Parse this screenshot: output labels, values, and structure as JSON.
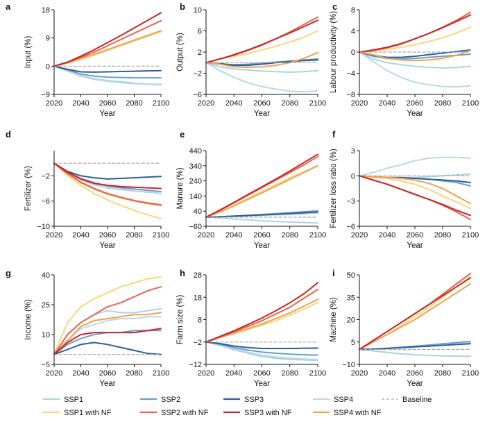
{
  "years": [
    2020,
    2030,
    2040,
    2050,
    2060,
    2070,
    2080,
    2090,
    2100
  ],
  "series": [
    {
      "key": "ssp1",
      "label": "SSP1",
      "color": "#a9d4e2",
      "dash": false
    },
    {
      "key": "ssp1nf",
      "label": "SSP1 with NF",
      "color": "#f6d77e",
      "dash": false
    },
    {
      "key": "ssp2",
      "label": "SSP2",
      "color": "#6b9ec7",
      "dash": false
    },
    {
      "key": "ssp2nf",
      "label": "SSP2 with NF",
      "color": "#e7634a",
      "dash": false
    },
    {
      "key": "ssp3",
      "label": "SSP3",
      "color": "#2f5d98",
      "dash": false
    },
    {
      "key": "ssp3nf",
      "label": "SSP3 with NF",
      "color": "#c92526",
      "dash": false
    },
    {
      "key": "ssp4",
      "label": "SSP4",
      "color": "#b8d8e8",
      "dash": false
    },
    {
      "key": "ssp4nf",
      "label": "SSP4 with NF",
      "color": "#f0a24e",
      "dash": false
    },
    {
      "key": "baseline",
      "label": "Baseline",
      "color": "#a6a6a6",
      "dash": true
    }
  ],
  "chart_data": [
    {
      "panel": "a",
      "type": "line",
      "ylabel": "Input (%)",
      "xlabel": "Year",
      "ylim": [
        -9,
        18
      ],
      "yticks": [
        -9,
        0,
        9,
        18
      ],
      "xticks": [
        2020,
        2040,
        2060,
        2080,
        2100
      ],
      "lines": {
        "ssp1": [
          0,
          -1.5,
          -3,
          -4,
          -4.6,
          -5,
          -5.4,
          -5.7,
          -5.8
        ],
        "ssp1nf": [
          0,
          1,
          2.2,
          3.5,
          5,
          6.5,
          8,
          9.5,
          11
        ],
        "ssp2": [
          0,
          -1.2,
          -2.5,
          -3.2,
          -3.5,
          -3.6,
          -3.7,
          -3.7,
          -3.7
        ],
        "ssp2nf": [
          0,
          1.2,
          2.8,
          4.5,
          6.5,
          8.5,
          10.5,
          12.5,
          14.5
        ],
        "ssp3": [
          0,
          -1,
          -1.8,
          -1.9,
          -1.8,
          -1.7,
          -1.6,
          -1.5,
          -1.4
        ],
        "ssp3nf": [
          0,
          1.3,
          3.2,
          5.2,
          7.5,
          9.8,
          12.2,
          14.6,
          17
        ],
        "ssp4": [
          0,
          -1.6,
          -3.2,
          -4.2,
          -4.8,
          -5.3,
          -5.6,
          -5.8,
          -6
        ],
        "ssp4nf": [
          0,
          1,
          2.5,
          3.8,
          5.3,
          6.8,
          8.3,
          9.8,
          11.3
        ],
        "baseline": [
          0,
          0,
          0,
          0,
          0,
          0,
          0,
          0,
          0
        ]
      }
    },
    {
      "panel": "b",
      "type": "line",
      "ylabel": "Output (%)",
      "xlabel": "Year",
      "ylim": [
        -6,
        10
      ],
      "yticks": [
        -6,
        -2,
        2,
        6,
        10
      ],
      "xticks": [
        2020,
        2040,
        2060,
        2080,
        2100
      ],
      "lines": {
        "ssp1": [
          0,
          -0.8,
          -1.2,
          -1.4,
          -1.6,
          -1.7,
          -1.8,
          -1.7,
          -1.5
        ],
        "ssp1nf": [
          0,
          0.7,
          1.2,
          1.7,
          2.4,
          3.1,
          3.9,
          4.8,
          6
        ],
        "ssp2": [
          0,
          -0.2,
          -0.4,
          -0.3,
          -0.1,
          0.1,
          0.3,
          0.5,
          0.7
        ],
        "ssp2nf": [
          0,
          0.7,
          1.4,
          2.3,
          3.3,
          4.5,
          5.8,
          7.2,
          8.6
        ],
        "ssp3": [
          0,
          -0.2,
          -0.5,
          -0.5,
          -0.3,
          0,
          0.2,
          0.4,
          0.5
        ],
        "ssp3nf": [
          0,
          0.7,
          1.5,
          2.4,
          3.4,
          4.5,
          5.6,
          6.8,
          8
        ],
        "ssp4": [
          0,
          -1.5,
          -2.8,
          -3.8,
          -4.5,
          -5,
          -5.4,
          -5.5,
          -5.3
        ],
        "ssp4nf": [
          0,
          -0.3,
          -0.8,
          -0.9,
          -0.8,
          -0.5,
          0,
          0.8,
          1.9
        ],
        "baseline": [
          0,
          0,
          0,
          0,
          0,
          0,
          0,
          0,
          0
        ]
      }
    },
    {
      "panel": "c",
      "type": "line",
      "ylabel": "Labour productivity (%)",
      "xlabel": "Year",
      "ylim": [
        -8,
        8
      ],
      "yticks": [
        -8,
        -4,
        0,
        4,
        8
      ],
      "xticks": [
        2020,
        2040,
        2060,
        2080,
        2100
      ],
      "lines": {
        "ssp1": [
          0,
          -1.3,
          -2,
          -2.4,
          -2.7,
          -2.9,
          -3,
          -2.9,
          -2.7
        ],
        "ssp1nf": [
          0,
          0.2,
          0.5,
          0.9,
          1.4,
          2,
          2.7,
          3.6,
          4.7
        ],
        "ssp2": [
          0,
          -0.8,
          -1.2,
          -1.3,
          -1.2,
          -1,
          -0.8,
          -0.6,
          -0.4
        ],
        "ssp2nf": [
          0,
          0.3,
          0.8,
          1.5,
          2.5,
          3.5,
          4.7,
          6,
          7.5
        ],
        "ssp3": [
          0,
          -0.6,
          -1,
          -1,
          -0.8,
          -0.5,
          -0.2,
          0.1,
          0.4
        ],
        "ssp3nf": [
          0,
          0.4,
          0.9,
          1.6,
          2.5,
          3.5,
          4.6,
          5.8,
          7
        ],
        "ssp4": [
          0,
          -1.8,
          -3.5,
          -4.8,
          -5.7,
          -6.2,
          -6.5,
          -6.6,
          -6.4
        ],
        "ssp4nf": [
          0,
          -0.5,
          -1.2,
          -1.5,
          -1.6,
          -1.5,
          -1.2,
          -0.6,
          0.3
        ],
        "baseline": [
          0,
          0,
          0,
          0,
          0,
          0,
          0,
          0,
          0
        ]
      }
    },
    {
      "panel": "d",
      "type": "line",
      "ylabel": "Fertilizer (%)",
      "xlabel": "Year",
      "ylim": [
        -10,
        2
      ],
      "yticks": [
        -10,
        -6,
        -2
      ],
      "xticks": [
        2020,
        2040,
        2060,
        2080,
        2100
      ],
      "lines": {
        "ssp1": [
          0,
          -1.5,
          -2.6,
          -3.4,
          -3.9,
          -4.2,
          -4.4,
          -4.6,
          -4.8
        ],
        "ssp1nf": [
          0,
          -2,
          -3.5,
          -4.8,
          -5.8,
          -6.7,
          -7.5,
          -8.2,
          -8.8
        ],
        "ssp2": [
          0,
          -1.4,
          -2.4,
          -3.1,
          -3.6,
          -3.9,
          -4.1,
          -4.3,
          -4.5
        ],
        "ssp2nf": [
          0,
          -1.6,
          -3,
          -4,
          -4.8,
          -5.4,
          -5.9,
          -6.3,
          -6.6
        ],
        "ssp3": [
          0,
          -1.3,
          -2,
          -2.3,
          -2.5,
          -2.4,
          -2.3,
          -2.2,
          -2.1
        ],
        "ssp3nf": [
          0,
          -1.4,
          -2.5,
          -3.2,
          -3.5,
          -3.7,
          -3.8,
          -3.9,
          -4
        ],
        "ssp4": [
          0,
          -1.5,
          -2.5,
          -3.2,
          -3.6,
          -3.9,
          -4.1,
          -4.3,
          -4.5
        ],
        "ssp4nf": [
          0,
          -1.7,
          -3.1,
          -4.1,
          -4.9,
          -5.5,
          -6,
          -6.4,
          -6.7
        ],
        "baseline": [
          0,
          0,
          0,
          0,
          0,
          0,
          0,
          0,
          0
        ]
      }
    },
    {
      "panel": "e",
      "type": "line",
      "ylabel": "Manure (%)",
      "xlabel": "Year",
      "ylim": [
        -60,
        440
      ],
      "yticks": [
        -60,
        40,
        140,
        240,
        340,
        440
      ],
      "xticks": [
        2020,
        2040,
        2060,
        2080,
        2100
      ],
      "lines": {
        "ssp1": [
          0,
          -5,
          -12,
          -18,
          -24,
          -28,
          -32,
          -35,
          -38
        ],
        "ssp1nf": [
          0,
          35,
          80,
          125,
          170,
          215,
          260,
          300,
          340
        ],
        "ssp2": [
          0,
          3,
          8,
          13,
          18,
          24,
          30,
          36,
          42
        ],
        "ssp2nf": [
          0,
          45,
          95,
          145,
          195,
          245,
          295,
          345,
          400
        ],
        "ssp3": [
          0,
          3,
          7,
          11,
          15,
          19,
          24,
          29,
          34
        ],
        "ssp3nf": [
          0,
          48,
          98,
          150,
          200,
          252,
          305,
          360,
          415
        ],
        "ssp4": [
          0,
          3,
          6,
          9,
          12,
          15,
          18,
          22,
          26
        ],
        "ssp4nf": [
          0,
          35,
          75,
          118,
          160,
          205,
          250,
          295,
          340
        ],
        "baseline": [
          0,
          0,
          0,
          0,
          0,
          0,
          0,
          0,
          0
        ]
      }
    },
    {
      "panel": "f",
      "type": "line",
      "ylabel": "Fertilizer loss ratio (%)",
      "xlabel": "Year",
      "ylim": [
        -6,
        3
      ],
      "yticks": [
        -6,
        -3,
        0,
        3
      ],
      "xticks": [
        2020,
        2040,
        2060,
        2080,
        2100
      ],
      "lines": {
        "ssp1": [
          0,
          -0.1,
          -0.2,
          -0.2,
          -0.2,
          -0.1,
          0,
          0.1,
          0.2
        ],
        "ssp1nf": [
          0,
          -0.2,
          -0.3,
          -0.6,
          -1,
          -1.6,
          -2.4,
          -3.1,
          -3.9
        ],
        "ssp2": [
          0,
          -0.1,
          -0.2,
          -0.3,
          -0.3,
          -0.4,
          -0.6,
          -0.8,
          -1.2
        ],
        "ssp2nf": [
          0,
          -0.5,
          -1,
          -1.6,
          -2.2,
          -2.8,
          -3.5,
          -4.3,
          -5.2
        ],
        "ssp3": [
          0,
          -0.1,
          -0.2,
          -0.2,
          -0.3,
          -0.4,
          -0.5,
          -0.6,
          -0.8
        ],
        "ssp3nf": [
          0,
          -0.5,
          -1,
          -1.6,
          -2.2,
          -2.8,
          -3.4,
          -4.1,
          -4.7
        ],
        "ssp4": [
          0,
          0.4,
          0.9,
          1.3,
          1.8,
          2.1,
          2.2,
          2.2,
          2.1
        ],
        "ssp4nf": [
          0,
          -0.1,
          -0.2,
          -0.3,
          -0.5,
          -0.9,
          -1.5,
          -2.4,
          -3.3
        ],
        "baseline": [
          0,
          0,
          0,
          0,
          0,
          0,
          0,
          0,
          0
        ]
      }
    },
    {
      "panel": "g",
      "type": "line",
      "ylabel": "Income (%)",
      "xlabel": "Year",
      "ylim": [
        -5,
        40
      ],
      "yticks": [
        -5,
        10,
        25,
        40
      ],
      "xticks": [
        2020,
        2040,
        2060,
        2080,
        2100
      ],
      "lines": {
        "ssp1": [
          0,
          10,
          16,
          20,
          22,
          21,
          21,
          22,
          23
        ],
        "ssp1nf": [
          0,
          16,
          24,
          28,
          31,
          34,
          36,
          38,
          39
        ],
        "ssp2": [
          0,
          5,
          8,
          10,
          11,
          11,
          12,
          12,
          12
        ],
        "ssp2nf": [
          0,
          10,
          16,
          20,
          24,
          26,
          29,
          32,
          34
        ],
        "ssp3": [
          0,
          2.5,
          5,
          6,
          5,
          3.5,
          2,
          0.5,
          0
        ],
        "ssp3nf": [
          0,
          6,
          10,
          11,
          11,
          11,
          11,
          12,
          13
        ],
        "ssp4": [
          0,
          7,
          13,
          15,
          17,
          18,
          18,
          19,
          19
        ],
        "ssp4nf": [
          0,
          7,
          14,
          17,
          18,
          19,
          20,
          20,
          21
        ],
        "baseline": [
          0,
          0,
          0,
          0,
          0,
          0,
          0,
          0,
          0
        ]
      }
    },
    {
      "panel": "h",
      "type": "line",
      "ylabel": "Farm size (%)",
      "xlabel": "Year",
      "ylim": [
        -12,
        28
      ],
      "yticks": [
        -12,
        -2,
        8,
        18,
        28
      ],
      "xticks": [
        2020,
        2040,
        2060,
        2080,
        2100
      ],
      "lines": {
        "ssp1": [
          -2,
          -3.5,
          -5.5,
          -7,
          -8.5,
          -9.3,
          -9.8,
          -10,
          -10.2
        ],
        "ssp1nf": [
          -2,
          0,
          1.8,
          3.5,
          5.5,
          7.5,
          10,
          12.7,
          15.7
        ],
        "ssp2": [
          -2,
          -3,
          -4.5,
          -5.6,
          -6.5,
          -7,
          -7.4,
          -7.7,
          -7.9
        ],
        "ssp2nf": [
          -2,
          0.3,
          2.5,
          5,
          7.5,
          10.5,
          13.5,
          17.5,
          21.5
        ],
        "ssp3": [
          -2,
          -2.7,
          -3.8,
          -4.5,
          -4.9,
          -4.9,
          -4.9,
          -4.8,
          -4.7
        ],
        "ssp3nf": [
          -2,
          0.5,
          3,
          5.8,
          8.7,
          12,
          15.5,
          19.5,
          24.5
        ],
        "ssp4": [
          -2,
          -3.3,
          -5,
          -6.5,
          -7.8,
          -8.7,
          -9.2,
          -9.6,
          -9.8
        ],
        "ssp4nf": [
          -2,
          0,
          2,
          4,
          6,
          8.5,
          11,
          14,
          17
        ],
        "baseline": [
          -2,
          -2,
          -2,
          -2,
          -2,
          -2,
          -2,
          -2,
          -2
        ]
      }
    },
    {
      "panel": "i",
      "type": "line",
      "ylabel": "Machine (%)",
      "xlabel": "Year",
      "ylim": [
        -10,
        50
      ],
      "yticks": [
        -10,
        5,
        20,
        35,
        50
      ],
      "xticks": [
        2020,
        2040,
        2060,
        2080,
        2100
      ],
      "lines": {
        "ssp1": [
          0,
          -1,
          -2,
          -3,
          -3.5,
          -4,
          -4.3,
          -4.5,
          -4.5
        ],
        "ssp1nf": [
          0,
          5,
          10,
          16,
          22,
          28,
          35,
          42,
          49
        ],
        "ssp2": [
          0,
          0.3,
          0.8,
          1.5,
          2.2,
          3,
          3.8,
          4.6,
          5.4
        ],
        "ssp2nf": [
          0,
          6,
          12,
          18,
          24,
          30,
          37,
          44,
          51
        ],
        "ssp3": [
          0,
          0.3,
          0.7,
          1.2,
          1.7,
          2.2,
          2.8,
          3.3,
          3.8
        ],
        "ssp3nf": [
          0,
          6,
          12,
          18,
          24,
          30,
          36,
          42,
          48
        ],
        "ssp4": [
          0,
          0.3,
          0.8,
          1.2,
          1.8,
          2.5,
          3.2,
          3.8,
          4.4
        ],
        "ssp4nf": [
          0,
          5,
          10,
          15,
          20,
          26,
          32,
          38,
          44
        ],
        "baseline": [
          0,
          0,
          0,
          0,
          0,
          0,
          0,
          0,
          0
        ]
      }
    }
  ]
}
